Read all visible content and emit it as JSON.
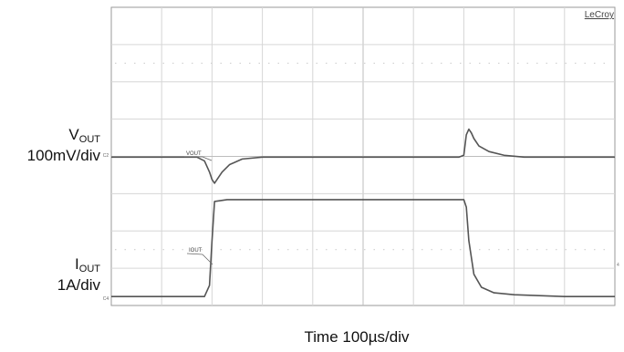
{
  "chart_data": {
    "type": "line",
    "instrument_logo": "LeCroy",
    "xlabel": "Time 100µs/div",
    "x_divisions": 10,
    "y_divisions": 8,
    "channel_markers": [
      "C2",
      "C4"
    ],
    "series": [
      {
        "name": "VOUT",
        "trace_tag": "VOUT",
        "axis_label_main": "V",
        "axis_label_sub": "OUT",
        "scale": "100mV/div",
        "unit": "div",
        "x": [
          0,
          0.5,
          1.0,
          1.5,
          1.7,
          1.85,
          1.95,
          2.0,
          2.05,
          2.1,
          2.2,
          2.35,
          2.6,
          3.0,
          4.0,
          5.0,
          6.0,
          6.7,
          6.9,
          7.0,
          7.05,
          7.1,
          7.15,
          7.2,
          7.3,
          7.5,
          7.8,
          8.2,
          9.0,
          10.0
        ],
        "y": [
          0,
          0,
          0,
          0,
          0,
          -0.1,
          -0.4,
          -0.6,
          -0.7,
          -0.6,
          -0.4,
          -0.2,
          -0.05,
          0,
          0,
          0,
          0,
          0,
          0,
          0.05,
          0.6,
          0.75,
          0.65,
          0.5,
          0.3,
          0.15,
          0.05,
          0,
          0,
          0
        ]
      },
      {
        "name": "IOUT",
        "trace_tag": "IOUT",
        "axis_label_main": "I",
        "axis_label_sub": "OUT",
        "scale": "1A/div",
        "unit": "div",
        "x": [
          0,
          0.5,
          1.0,
          1.5,
          1.85,
          1.95,
          2.0,
          2.05,
          2.3,
          3.0,
          4.0,
          5.0,
          6.0,
          7.0,
          7.05,
          7.1,
          7.2,
          7.35,
          7.6,
          8.0,
          9.0,
          10.0
        ],
        "y": [
          0,
          0,
          0,
          0,
          0,
          0.3,
          1.5,
          2.55,
          2.6,
          2.6,
          2.6,
          2.6,
          2.6,
          2.6,
          2.4,
          1.5,
          0.6,
          0.25,
          0.1,
          0.05,
          0,
          0
        ]
      }
    ],
    "grid": true
  }
}
